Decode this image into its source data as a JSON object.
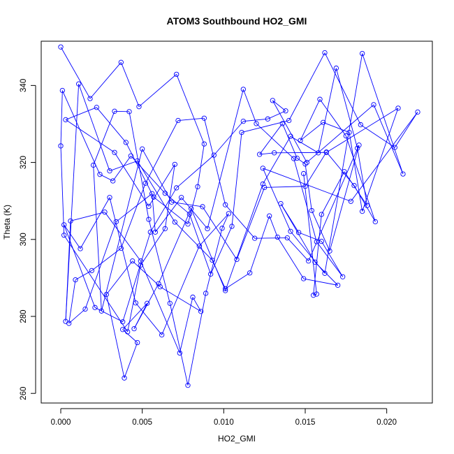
{
  "chart_data": {
    "type": "line",
    "title": "ATOM3 Southbound HO2_GMI",
    "xlabel": "HO2_GMI",
    "ylabel": "Theta (K)",
    "xlim": [
      -0.0012,
      0.0228
    ],
    "ylim": [
      257.5,
      351.5
    ],
    "x_ticks": [
      0.0,
      0.005,
      0.01,
      0.015,
      0.02
    ],
    "x_tick_labels": [
      "0.000",
      "0.005",
      "0.010",
      "0.015",
      "0.020"
    ],
    "y_ticks": [
      260,
      280,
      300,
      320,
      340
    ],
    "y_tick_labels": [
      "260",
      "280",
      "300",
      "320",
      "340"
    ],
    "grid": false,
    "legend": "none",
    "marker": "open-circle",
    "colors": {
      "series": "#0000ff",
      "frame": "#000000",
      "background": "#ffffff"
    },
    "series": [
      {
        "x": [
          0.0,
          0.0018,
          0.0037,
          0.0048,
          0.0071,
          0.0088,
          0.0084,
          0.0078,
          0.0057,
          0.004,
          0.0022,
          0.0003,
          0.0033,
          0.0054,
          0.007,
          0.0064,
          0.0049,
          0.0041,
          0.0002,
          0.0,
          0.0001,
          0.0024,
          0.0032,
          0.0043,
          0.0064,
          0.0079,
          0.0092,
          0.0105,
          0.0111,
          0.014,
          0.0162,
          0.0184,
          0.0205,
          0.0219,
          0.0178,
          0.0124,
          0.0141,
          0.0162,
          0.0185,
          0.021,
          0.0192,
          0.0151,
          0.013,
          0.0138,
          0.0127,
          0.0112,
          0.0094,
          0.0071,
          0.0055,
          0.0038,
          0.0021,
          0.0002,
          0.0012,
          0.003,
          0.0046,
          0.0062,
          0.0085,
          0.0103,
          0.0099,
          0.0089,
          0.0078,
          0.0067,
          0.0054,
          0.0042,
          0.0033,
          0.002,
          0.0025,
          0.005,
          0.0068,
          0.0087,
          0.0108,
          0.0125,
          0.015,
          0.0163,
          0.018,
          0.0193,
          0.0175,
          0.0159,
          0.0147,
          0.0161,
          0.0177,
          0.0185,
          0.0207,
          0.0163,
          0.0131,
          0.0122,
          0.0136,
          0.0145,
          0.015,
          0.0154,
          0.0165,
          0.0183,
          0.0152,
          0.0139,
          0.0119,
          0.0101,
          0.0088,
          0.0072,
          0.0052,
          0.0037,
          0.0019,
          0.0009,
          0.0005,
          0.0015,
          0.0034,
          0.0056,
          0.0058,
          0.0074,
          0.009,
          0.0112,
          0.012,
          0.0143,
          0.0157,
          0.0173,
          0.016,
          0.0146,
          0.0135,
          0.0156,
          0.017,
          0.0149,
          0.0133,
          0.0128,
          0.0116,
          0.0101,
          0.0093,
          0.007,
          0.0047,
          0.003,
          0.0011,
          0.0003,
          0.0006,
          0.0027,
          0.0049,
          0.0073,
          0.0081,
          0.0086,
          0.0061,
          0.0044,
          0.0028,
          0.0039,
          0.0047,
          0.0038,
          0.0053,
          0.0045,
          0.006,
          0.008,
          0.0101,
          0.0124,
          0.0141,
          0.0158,
          0.0169,
          0.0182,
          0.0188,
          0.0174,
          0.016,
          0.0155,
          0.0157,
          0.0149
        ],
        "y": [
          350.0,
          336.6,
          346.0,
          334.5,
          342.9,
          324.8,
          313.7,
          304.0,
          311.0,
          325.2,
          334.3,
          331.1,
          322.6,
          308.6,
          319.5,
          302.8,
          293.3,
          276.0,
          301.1,
          324.3,
          338.7,
          316.9,
          315.2,
          321.7,
          312.0,
          306.6,
          291.0,
          303.4,
          327.8,
          330.9,
          348.5,
          329.8,
          323.9,
          333.1,
          309.9,
          318.5,
          302.1,
          291.2,
          348.3,
          317.0,
          335.0,
          320.0,
          336.1,
          333.4,
          331.3,
          330.7,
          321.9,
          313.4,
          301.9,
          278.6,
          282.3,
          303.8,
          297.6,
          310.9,
          283.5,
          275.2,
          298.3,
          306.7,
          302.9,
          286.0,
          262.1,
          283.4,
          305.2,
          333.2,
          333.3,
          319.3,
          281.4,
          323.5,
          309.7,
          308.5,
          294.8,
          313.5,
          313.8,
          322.7,
          314.0,
          304.6,
          326.9,
          336.4,
          325.7,
          330.4,
          327.8,
          307.3,
          334.1,
          322.6,
          322.5,
          322.1,
          330.1,
          321.1,
          319.6,
          307.5,
          297.0,
          324.5,
          294.4,
          300.4,
          300.3,
          309.0,
          331.5,
          330.9,
          314.6,
          297.7,
          291.9,
          289.5,
          278.2,
          281.9,
          304.6,
          311.9,
          301.9,
          310.9,
          302.8,
          339.0,
          330.1,
          321.0,
          299.4,
          290.3,
          299.5,
          301.8,
          309.3,
          294.1,
          288.1,
          289.8,
          300.6,
          306.1,
          291.3,
          287.2,
          294.6,
          304.5,
          320.4,
          317.8,
          340.4,
          278.7,
          304.8,
          307.1,
          294.4,
          270.5,
          285.0,
          281.3,
          287.7,
          294.4,
          285.7,
          264.0,
          273.2,
          276.6,
          283.4,
          276.8,
          288.5,
          308.0,
          286.7,
          314.4,
          326.8,
          322.5,
          344.5,
          323.7,
          308.8,
          317.6,
          306.5,
          285.5,
          285.8,
          317.1
        ]
      }
    ]
  }
}
